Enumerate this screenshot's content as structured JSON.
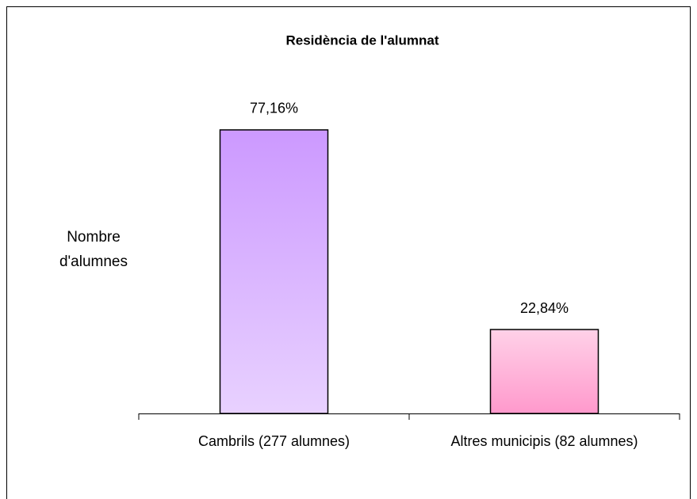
{
  "chart_data": {
    "type": "bar",
    "title": "Residència de l'alumnat",
    "y_label": "Nombre d'alumnes",
    "categories": [
      "Cambrils (277 alumnes)",
      "Altres municipis (82 alumnes)"
    ],
    "values": [
      77.16,
      22.84
    ],
    "value_labels": [
      "77,16%",
      "22,84%"
    ],
    "colors": [
      "#cc99ff",
      "#ff99cc"
    ],
    "ylim": [
      0,
      100
    ],
    "grid": false
  }
}
